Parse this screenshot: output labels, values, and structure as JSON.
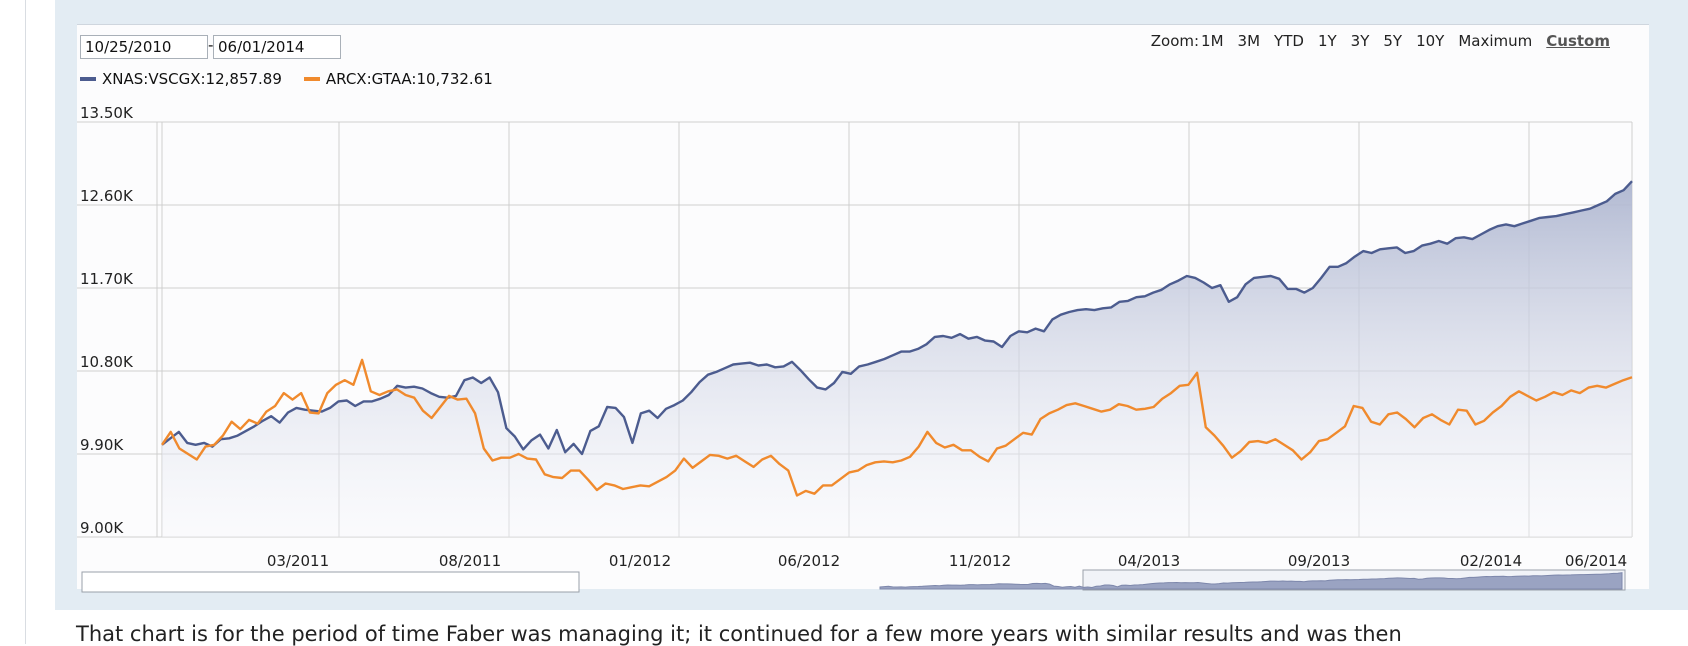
{
  "date_range": {
    "start": "10/25/2010",
    "end": "06/01/2014",
    "separator": "-"
  },
  "zoom": {
    "label": "Zoom:",
    "options": [
      "1M",
      "3M",
      "YTD",
      "1Y",
      "3Y",
      "5Y",
      "10Y",
      "Maximum",
      "Custom"
    ],
    "active": "Custom"
  },
  "legend": [
    {
      "label": "XNAS:VSCGX:12,857.89",
      "color": "#4c5c8f"
    },
    {
      "label": "ARCX:GTAA:10,732.61",
      "color": "#f08a2d"
    }
  ],
  "colors": {
    "series1": "#4c5c8f",
    "series1_fill_top": "#b9c0d7",
    "series2": "#f08a2d",
    "panel_bg": "#e3ecf3",
    "grid": "#cfcfcf"
  },
  "chart_data": {
    "type": "line",
    "title": "",
    "xlabel": "",
    "ylabel": "",
    "ylim": [
      9000,
      13500
    ],
    "y_ticks": [
      9000,
      9900,
      10800,
      11700,
      12600,
      13500
    ],
    "y_tick_labels": [
      "9.00K",
      "9.90K",
      "10.80K",
      "11.70K",
      "12.60K",
      "13.50K"
    ],
    "x_tick_labels": [
      "03/2011",
      "08/2011",
      "01/2012",
      "06/2012",
      "11/2012",
      "04/2013",
      "09/2013",
      "02/2014",
      "06/2014"
    ],
    "x_range": [
      "10/25/2010",
      "06/01/2014"
    ],
    "grid": true,
    "legend_position": "top-left",
    "series": [
      {
        "name": "XNAS:VSCGX:12,857.89",
        "area_fill": true,
        "values": [
          10000,
          10070,
          10140,
          10020,
          10000,
          10020,
          9980,
          10060,
          10070,
          10100,
          10150,
          10200,
          10260,
          10310,
          10240,
          10350,
          10400,
          10380,
          10370,
          10360,
          10400,
          10470,
          10480,
          10420,
          10470,
          10470,
          10500,
          10540,
          10640,
          10620,
          10630,
          10610,
          10560,
          10520,
          10510,
          10530,
          10700,
          10730,
          10670,
          10730,
          10570,
          10180,
          10090,
          9950,
          10050,
          10110,
          9960,
          10160,
          9920,
          10010,
          9900,
          10150,
          10200,
          10410,
          10400,
          10300,
          10020,
          10340,
          10370,
          10290,
          10390,
          10430,
          10480,
          10570,
          10680,
          10760,
          10790,
          10830,
          10870,
          10880,
          10890,
          10860,
          10870,
          10840,
          10850,
          10900,
          10810,
          10710,
          10620,
          10600,
          10670,
          10790,
          10770,
          10850,
          10870,
          10900,
          10930,
          10970,
          11010,
          11010,
          11040,
          11090,
          11170,
          11180,
          11160,
          11200,
          11150,
          11170,
          11130,
          11120,
          11060,
          11180,
          11230,
          11220,
          11260,
          11230,
          11360,
          11410,
          11440,
          11460,
          11470,
          11460,
          11480,
          11490,
          11550,
          11560,
          11600,
          11610,
          11650,
          11680,
          11740,
          11780,
          11830,
          11810,
          11760,
          11700,
          11730,
          11550,
          11600,
          11740,
          11810,
          11820,
          11830,
          11800,
          11690,
          11690,
          11650,
          11700,
          11810,
          11930,
          11930,
          11970,
          12040,
          12100,
          12080,
          12120,
          12130,
          12140,
          12080,
          12100,
          12160,
          12180,
          12210,
          12180,
          12240,
          12250,
          12230,
          12280,
          12330,
          12370,
          12390,
          12370,
          12400,
          12430,
          12460,
          12470,
          12480,
          12500,
          12520,
          12540,
          12560,
          12600,
          12640,
          12720,
          12760,
          12858
        ]
      },
      {
        "name": "ARCX:GTAA:10,732.61",
        "area_fill": false,
        "values": [
          10000,
          10140,
          9960,
          9900,
          9840,
          9980,
          10000,
          10100,
          10250,
          10170,
          10270,
          10230,
          10360,
          10420,
          10560,
          10490,
          10560,
          10350,
          10340,
          10560,
          10650,
          10700,
          10650,
          10920,
          10580,
          10540,
          10580,
          10600,
          10540,
          10510,
          10370,
          10290,
          10410,
          10530,
          10490,
          10500,
          10340,
          9960,
          9830,
          9860,
          9860,
          9900,
          9850,
          9840,
          9680,
          9650,
          9640,
          9720,
          9720,
          9620,
          9510,
          9580,
          9560,
          9520,
          9540,
          9560,
          9550,
          9600,
          9650,
          9720,
          9850,
          9750,
          9820,
          9890,
          9880,
          9850,
          9880,
          9820,
          9760,
          9840,
          9880,
          9790,
          9720,
          9450,
          9500,
          9470,
          9560,
          9560,
          9630,
          9700,
          9720,
          9780,
          9810,
          9820,
          9810,
          9830,
          9870,
          9980,
          10140,
          10020,
          9970,
          10000,
          9940,
          9940,
          9870,
          9820,
          9960,
          9990,
          10060,
          10130,
          10110,
          10280,
          10340,
          10380,
          10430,
          10450,
          10420,
          10390,
          10360,
          10380,
          10440,
          10420,
          10380,
          10390,
          10410,
          10500,
          10560,
          10640,
          10650,
          10780,
          10190,
          10100,
          9990,
          9860,
          9930,
          10030,
          10040,
          10020,
          10060,
          10000,
          9940,
          9840,
          9920,
          10040,
          10060,
          10130,
          10200,
          10420,
          10400,
          10250,
          10220,
          10330,
          10350,
          10280,
          10190,
          10290,
          10330,
          10270,
          10220,
          10380,
          10370,
          10220,
          10260,
          10350,
          10420,
          10520,
          10580,
          10530,
          10480,
          10520,
          10570,
          10540,
          10590,
          10560,
          10620,
          10640,
          10620,
          10660,
          10700,
          10733
        ]
      }
    ]
  },
  "caption": "That chart is for the period of time Faber was managing it; it continued for a few more years with similar results and was then"
}
